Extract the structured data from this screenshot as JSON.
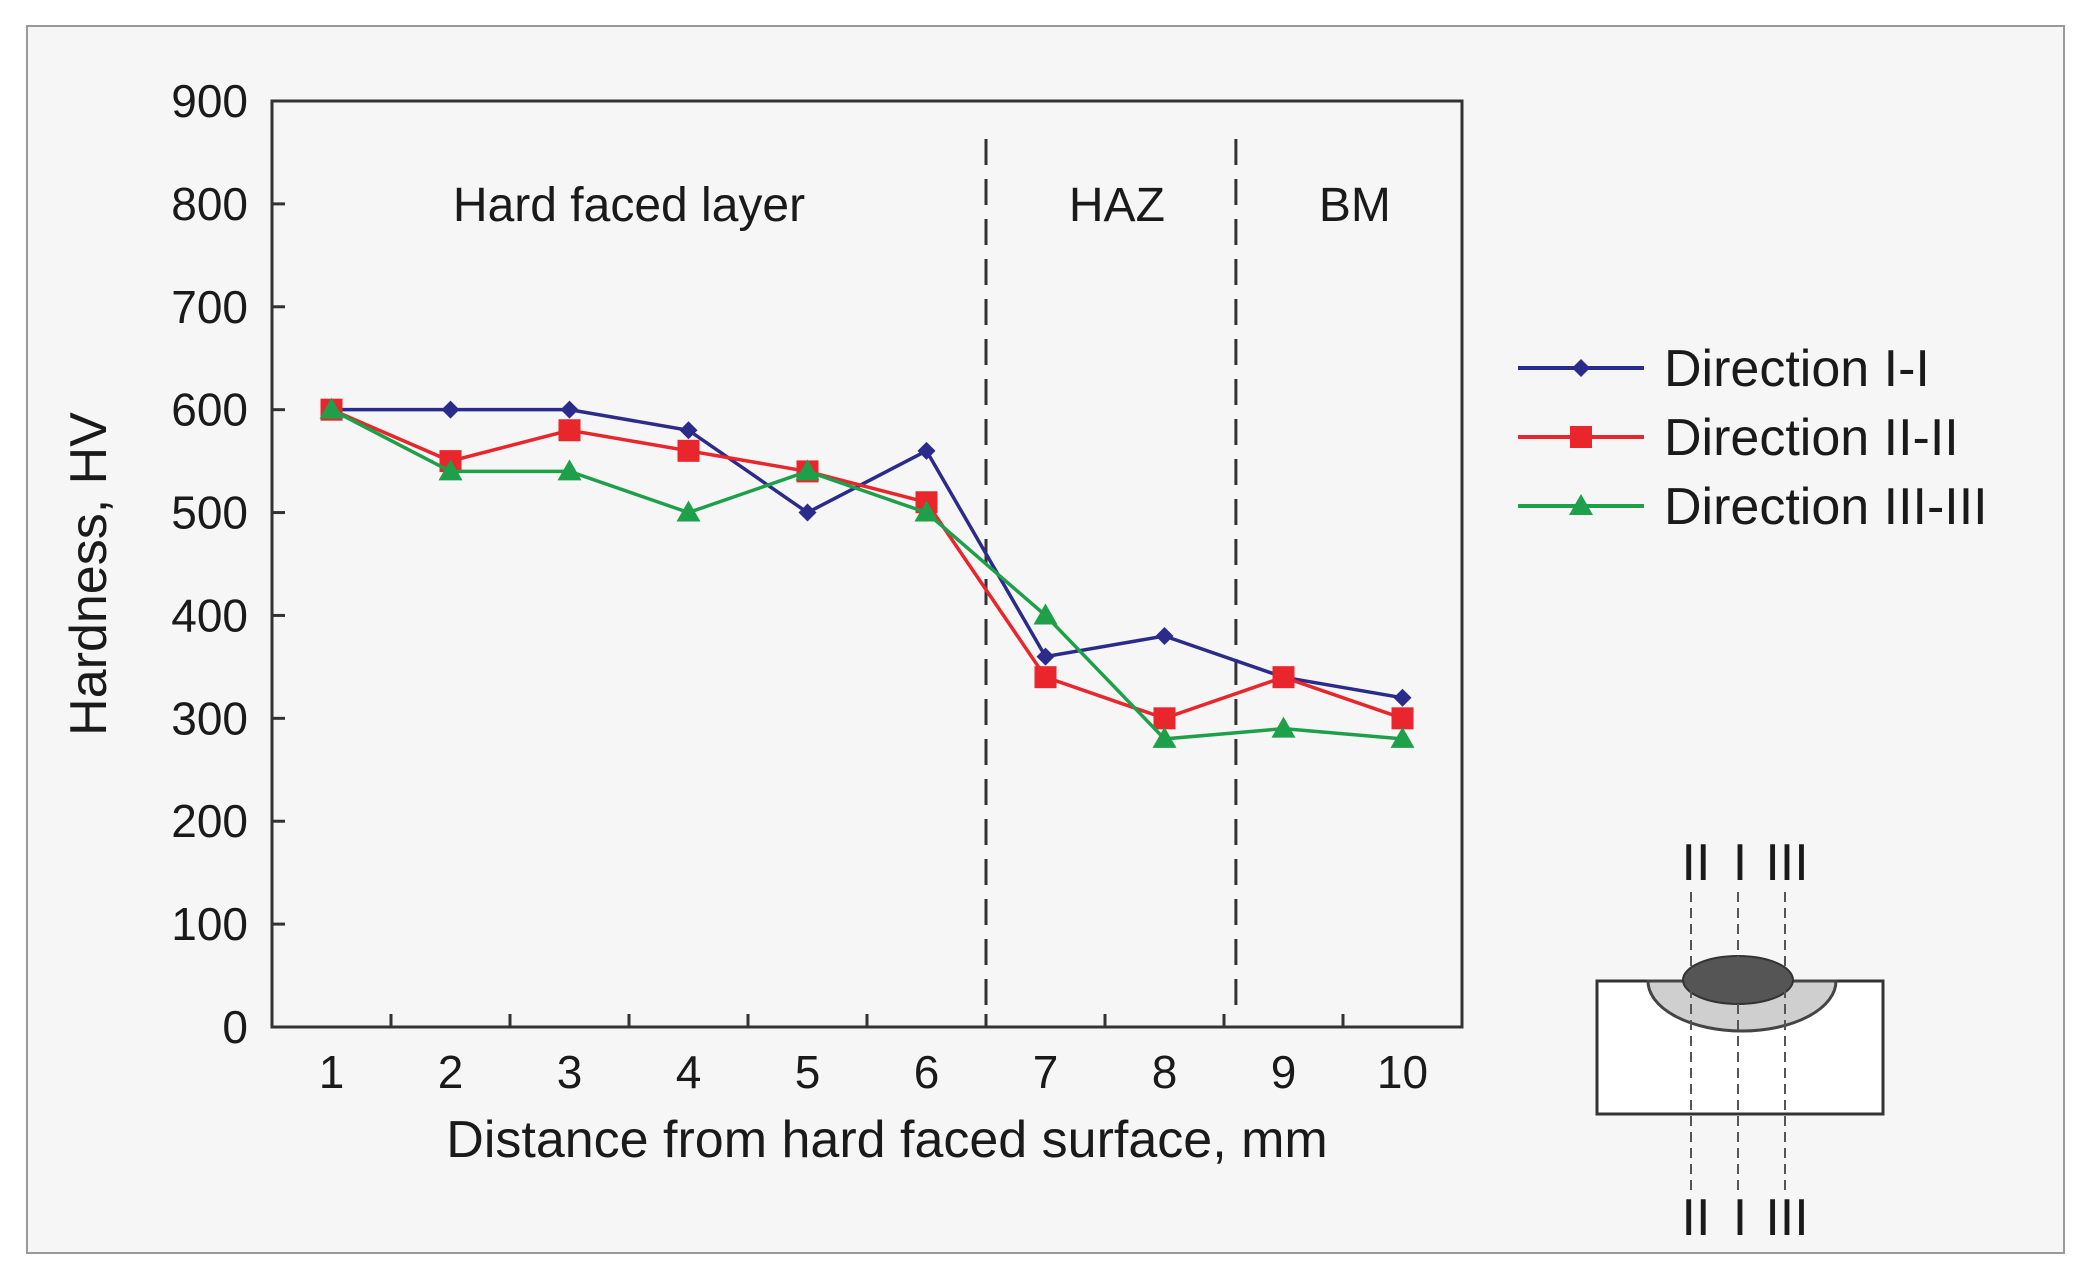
{
  "chart_data": {
    "type": "line",
    "title": "",
    "xlabel": "Distance from hard faced surface, mm",
    "ylabel": "Hardness, HV",
    "categories": [
      "1",
      "2",
      "3",
      "4",
      "5",
      "6",
      "7",
      "8",
      "9",
      "10"
    ],
    "x": [
      1,
      2,
      3,
      4,
      5,
      6,
      7,
      8,
      9,
      10
    ],
    "xlim": [
      0.5,
      10.5
    ],
    "ylim": [
      0,
      900
    ],
    "yticks": [
      0,
      100,
      200,
      300,
      400,
      500,
      600,
      700,
      800,
      900
    ],
    "grid": false,
    "legend_position": "right",
    "series": [
      {
        "name": "Direction I-I",
        "color": "#2b2b8c",
        "marker": "diamond",
        "values": [
          600,
          600,
          600,
          580,
          500,
          560,
          360,
          380,
          340,
          320
        ]
      },
      {
        "name": "Direction II-II",
        "color": "#e8262c",
        "marker": "square",
        "values": [
          600,
          550,
          580,
          560,
          540,
          510,
          340,
          300,
          340,
          300
        ]
      },
      {
        "name": "Direction III-III",
        "color": "#1ea04a",
        "marker": "triangle",
        "values": [
          600,
          540,
          540,
          500,
          540,
          500,
          400,
          280,
          290,
          280
        ]
      }
    ],
    "boundaries": [
      6.5,
      8.6
    ],
    "regions": [
      {
        "label": "Hard faced layer",
        "x": 3.5
      },
      {
        "label": "HAZ",
        "x": 7.6
      },
      {
        "label": "BM",
        "x": 9.6
      }
    ]
  },
  "inset": {
    "top_labels": [
      "II",
      "I",
      "III"
    ],
    "bottom_labels": [
      "II",
      "I",
      "III"
    ]
  }
}
